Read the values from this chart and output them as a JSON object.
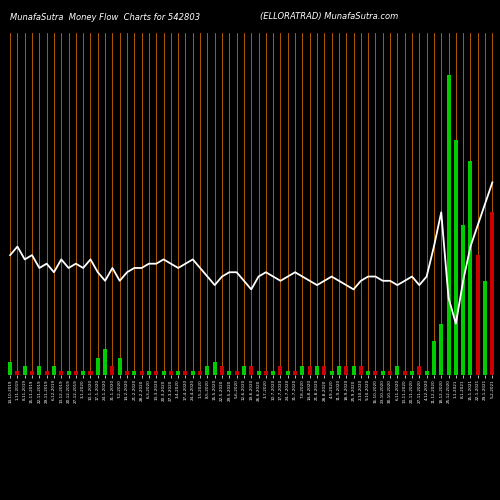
{
  "title_left": "MunafaSutra  Money Flow  Charts for 542803",
  "title_right": "(ELLORATRAD) MunafaSutra.com",
  "bg_color": "#000000",
  "bar_color_green": "#00cc00",
  "bar_color_red": "#cc0000",
  "orange_line_color": "#cc6600",
  "white_line_color": "#ffffff",
  "n_bars": 67,
  "bar_values": [
    3,
    1,
    2,
    1,
    2,
    1,
    2,
    1,
    1,
    1,
    1,
    1,
    4,
    6,
    2,
    4,
    1,
    1,
    1,
    1,
    1,
    1,
    1,
    1,
    1,
    1,
    1,
    2,
    3,
    2,
    1,
    1,
    2,
    2,
    1,
    1,
    1,
    2,
    1,
    1,
    2,
    2,
    2,
    2,
    1,
    2,
    2,
    2,
    2,
    1,
    1,
    1,
    1,
    2,
    1,
    1,
    2,
    1,
    8,
    12,
    70,
    55,
    35,
    50,
    28,
    22,
    38
  ],
  "bar_colors": [
    "g",
    "r",
    "g",
    "r",
    "g",
    "r",
    "g",
    "r",
    "g",
    "r",
    "g",
    "r",
    "g",
    "g",
    "r",
    "g",
    "r",
    "g",
    "r",
    "g",
    "r",
    "g",
    "r",
    "g",
    "r",
    "g",
    "r",
    "g",
    "g",
    "r",
    "g",
    "r",
    "g",
    "r",
    "g",
    "r",
    "g",
    "r",
    "g",
    "r",
    "g",
    "r",
    "g",
    "r",
    "g",
    "g",
    "r",
    "g",
    "r",
    "g",
    "r",
    "g",
    "r",
    "g",
    "r",
    "g",
    "r",
    "g",
    "g",
    "g",
    "g",
    "g",
    "g",
    "g",
    "r",
    "g",
    "r"
  ],
  "white_line_y": [
    28,
    30,
    27,
    28,
    25,
    26,
    24,
    27,
    25,
    26,
    25,
    27,
    24,
    22,
    25,
    22,
    24,
    25,
    25,
    26,
    26,
    27,
    26,
    25,
    26,
    27,
    25,
    23,
    21,
    23,
    24,
    24,
    22,
    20,
    23,
    24,
    23,
    22,
    23,
    24,
    23,
    22,
    21,
    22,
    23,
    22,
    21,
    20,
    22,
    23,
    23,
    22,
    22,
    21,
    22,
    23,
    21,
    23,
    30,
    38,
    18,
    12,
    22,
    30,
    35,
    40,
    45
  ],
  "ylim_max": 80,
  "xlabels": [
    "14-10-2019",
    "1-11-2019",
    "8-11-2019",
    "15-11-2019",
    "22-11-2019",
    "29-11-2019",
    "6-12-2019",
    "13-12-2019",
    "20-12-2019",
    "27-12-2019",
    "3-1-2020",
    "10-1-2020",
    "17-1-2020",
    "24-1-2020",
    "31-1-2020",
    "7-2-2020",
    "14-2-2020",
    "21-2-2020",
    "28-2-2020",
    "6-3-2020",
    "13-3-2020",
    "20-3-2020",
    "27-3-2020",
    "3-4-2020",
    "17-4-2020",
    "24-4-2020",
    "1-5-2020",
    "8-5-2020",
    "15-5-2020",
    "22-5-2020",
    "29-5-2020",
    "5-6-2020",
    "12-6-2020",
    "19-6-2020",
    "26-6-2020",
    "3-7-2020",
    "10-7-2020",
    "17-7-2020",
    "24-7-2020",
    "31-7-2020",
    "7-8-2020",
    "14-8-2020",
    "21-8-2020",
    "28-8-2020",
    "4-9-2020",
    "11-9-2020",
    "18-9-2020",
    "25-9-2020",
    "2-10-2020",
    "9-10-2020",
    "16-10-2020",
    "23-10-2020",
    "30-10-2020",
    "6-11-2020",
    "13-11-2020",
    "20-11-2020",
    "27-11-2020",
    "4-12-2020",
    "11-12-2020",
    "18-12-2020",
    "25-12-2020",
    "1-1-2021",
    "8-1-2021",
    "15-1-2021",
    "22-1-2021",
    "29-1-2021",
    "5-2-2021"
  ]
}
